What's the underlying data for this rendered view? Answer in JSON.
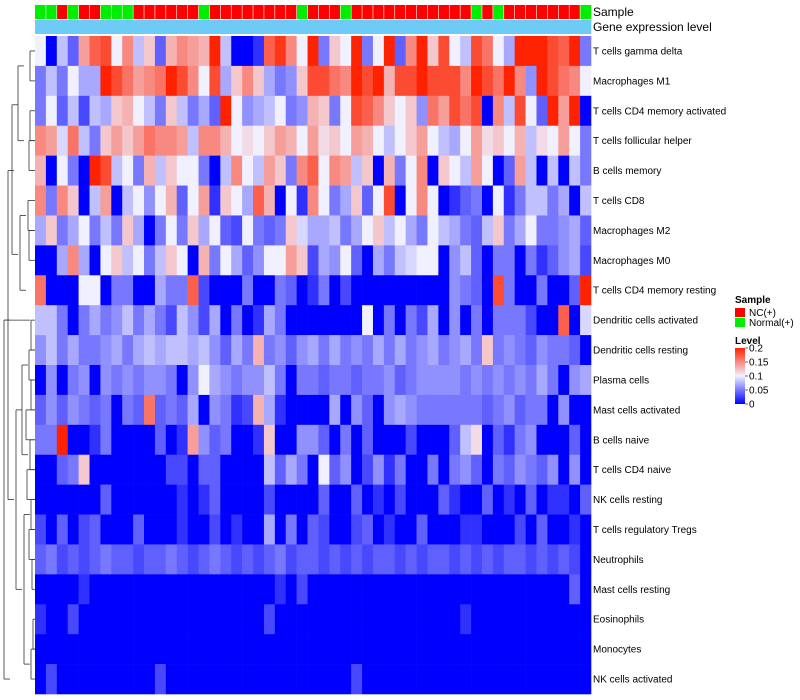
{
  "chart_data": {
    "type": "heatmap",
    "title": "",
    "annotation_rows": [
      {
        "label": "Sample",
        "values": [
          "N",
          "N",
          "NC",
          "N",
          "NC",
          "NC",
          "N",
          "N",
          "N",
          "NC",
          "NC",
          "NC",
          "NC",
          "NC",
          "NC",
          "N",
          "NC",
          "NC",
          "NC",
          "NC",
          "NC",
          "NC",
          "NC",
          "NC",
          "N",
          "NC",
          "NC",
          "NC",
          "N",
          "NC",
          "NC",
          "NC",
          "NC",
          "NC",
          "NC",
          "NC",
          "NC",
          "NC",
          "NC",
          "NC",
          "N",
          "NC",
          "N",
          "NC",
          "NC",
          "NC",
          "NC",
          "NC",
          "NC",
          "NC",
          "N"
        ]
      },
      {
        "label": "Gene expression level",
        "values": [
          "G",
          "G",
          "G",
          "G",
          "G",
          "G",
          "G",
          "G",
          "G",
          "G",
          "G",
          "G",
          "G",
          "G",
          "G",
          "G",
          "G",
          "G",
          "G",
          "G",
          "G",
          "G",
          "G",
          "G",
          "G",
          "G",
          "G",
          "G",
          "G",
          "G",
          "G",
          "G",
          "G",
          "G",
          "G",
          "G",
          "G",
          "G",
          "G",
          "G",
          "G",
          "G",
          "G",
          "G",
          "G",
          "G",
          "G",
          "G",
          "G",
          "G",
          "G"
        ]
      }
    ],
    "row_labels": [
      "T cells gamma delta",
      "Macrophages M1",
      "T cells CD4 memory activated",
      "T cells follicular helper",
      "B cells memory",
      "T cells CD8",
      "Macrophages M2",
      "Macrophages M0",
      "T cells CD4 memory resting",
      "Dendritic cells activated",
      "Dendritic cells resting",
      "Plasma cells",
      "Mast cells activated",
      "B cells naive",
      "T cells CD4 naive",
      "NK cells resting",
      "T cells regulatory  Tregs",
      "Neutrophils",
      "Mast cells resting",
      "Eosinophils",
      "Monocytes",
      "NK cells activated"
    ],
    "values": [
      [
        0.1,
        0.0,
        0.08,
        0.04,
        0.14,
        0.17,
        0.18,
        0.1,
        0.15,
        0.08,
        0.12,
        0.04,
        0.13,
        0.15,
        0.14,
        0.13,
        0.2,
        0.08,
        0.0,
        0.0,
        0.02,
        0.17,
        0.19,
        0.15,
        0.1,
        0.2,
        0.05,
        0.12,
        0.1,
        0.2,
        0.05,
        0.1,
        0.2,
        0.04,
        0.15,
        0.2,
        0.12,
        0.18,
        0.1,
        0.08,
        0.18,
        0.16,
        0.1,
        0.07,
        0.2,
        0.2,
        0.2,
        0.18,
        0.17,
        0.2,
        0.05
      ],
      [
        0.05,
        0.08,
        0.05,
        0.1,
        0.07,
        0.07,
        0.2,
        0.18,
        0.16,
        0.14,
        0.15,
        0.16,
        0.2,
        0.18,
        0.15,
        0.1,
        0.18,
        0.07,
        0.12,
        0.15,
        0.12,
        0.07,
        0.05,
        0.06,
        0.12,
        0.18,
        0.18,
        0.16,
        0.15,
        0.2,
        0.18,
        0.2,
        0.13,
        0.18,
        0.18,
        0.2,
        0.18,
        0.18,
        0.18,
        0.15,
        0.2,
        0.18,
        0.16,
        0.2,
        0.15,
        0.06,
        0.2,
        0.18,
        0.16,
        0.15,
        0.1
      ],
      [
        0.05,
        0.1,
        0.04,
        0.08,
        0.03,
        0.08,
        0.07,
        0.12,
        0.13,
        0.1,
        0.08,
        0.05,
        0.12,
        0.08,
        0.05,
        0.07,
        0.04,
        0.2,
        0.1,
        0.06,
        0.07,
        0.08,
        0.1,
        0.05,
        0.06,
        0.13,
        0.12,
        0.05,
        0.1,
        0.18,
        0.17,
        0.15,
        0.12,
        0.1,
        0.12,
        0.06,
        0.16,
        0.14,
        0.18,
        0.16,
        0.18,
        0.0,
        0.15,
        0.08,
        0.18,
        0.1,
        0.04,
        0.2,
        0.14,
        0.2,
        0.0
      ],
      [
        0.15,
        0.14,
        0.09,
        0.16,
        0.08,
        0.05,
        0.12,
        0.14,
        0.12,
        0.14,
        0.16,
        0.15,
        0.15,
        0.14,
        0.08,
        0.15,
        0.15,
        0.13,
        0.1,
        0.11,
        0.1,
        0.12,
        0.14,
        0.13,
        0.1,
        0.14,
        0.11,
        0.12,
        0.1,
        0.14,
        0.13,
        0.1,
        0.08,
        0.1,
        0.12,
        0.14,
        0.1,
        0.08,
        0.07,
        0.1,
        0.14,
        0.11,
        0.12,
        0.1,
        0.13,
        0.08,
        0.11,
        0.1,
        0.14,
        0.1,
        0.05
      ],
      [
        0.13,
        0.0,
        0.1,
        0.05,
        0.0,
        0.2,
        0.18,
        0.08,
        0.1,
        0.05,
        0.13,
        0.08,
        0.12,
        0.1,
        0.1,
        0.05,
        0.0,
        0.08,
        0.15,
        0.1,
        0.08,
        0.14,
        0.12,
        0.05,
        0.15,
        0.17,
        0.1,
        0.15,
        0.14,
        0.08,
        0.12,
        0.0,
        0.13,
        0.05,
        0.1,
        0.15,
        0.0,
        0.12,
        0.1,
        0.08,
        0.14,
        0.1,
        0.0,
        0.04,
        0.14,
        0.08,
        0.0,
        0.08,
        0.0,
        0.08,
        0.05
      ],
      [
        0.15,
        0.05,
        0.15,
        0.12,
        0.0,
        0.08,
        0.14,
        0.0,
        0.08,
        0.1,
        0.06,
        0.1,
        0.13,
        0.04,
        0.1,
        0.14,
        0.02,
        0.12,
        0.1,
        0.07,
        0.17,
        0.13,
        0.0,
        0.1,
        0.02,
        0.15,
        0.1,
        0.05,
        0.07,
        0.12,
        0.04,
        0.1,
        0.18,
        0.0,
        0.1,
        0.15,
        0.1,
        0.0,
        0.02,
        0.04,
        0.05,
        0.0,
        0.1,
        0.02,
        0.05,
        0.08,
        0.08,
        0.05,
        0.07,
        0.0,
        0.08
      ],
      [
        0.07,
        0.12,
        0.05,
        0.07,
        0.1,
        0.05,
        0.08,
        0.05,
        0.12,
        0.07,
        0.0,
        0.05,
        0.1,
        0.05,
        0.12,
        0.07,
        0.1,
        0.04,
        0.03,
        0.1,
        0.05,
        0.04,
        0.05,
        0.12,
        0.09,
        0.07,
        0.07,
        0.08,
        0.05,
        0.07,
        0.1,
        0.12,
        0.08,
        0.1,
        0.07,
        0.05,
        0.1,
        0.08,
        0.07,
        0.05,
        0.04,
        0.08,
        0.12,
        0.05,
        0.07,
        0.1,
        0.05,
        0.05,
        0.06,
        0.07,
        0.04
      ],
      [
        0.0,
        0.0,
        0.07,
        0.15,
        0.07,
        0.0,
        0.1,
        0.12,
        0.08,
        0.1,
        0.05,
        0.08,
        0.12,
        0.1,
        0.0,
        0.13,
        0.05,
        0.1,
        0.07,
        0.04,
        0.06,
        0.1,
        0.1,
        0.14,
        0.12,
        0.03,
        0.07,
        0.06,
        0.1,
        0.04,
        0.0,
        0.07,
        0.05,
        0.08,
        0.09,
        0.1,
        0.1,
        0.0,
        0.06,
        0.08,
        0.04,
        0.0,
        0.05,
        0.05,
        0.0,
        0.05,
        0.02,
        0.04,
        0.06,
        0.07,
        0.03
      ],
      [
        0.16,
        0.0,
        0.0,
        0.0,
        0.1,
        0.1,
        0.0,
        0.05,
        0.05,
        0.0,
        0.0,
        0.07,
        0.05,
        0.05,
        0.17,
        0.03,
        0.0,
        0.0,
        0.0,
        0.05,
        0.0,
        0.0,
        0.05,
        0.04,
        0.0,
        0.02,
        0.05,
        0.0,
        0.03,
        0.0,
        0.0,
        0.0,
        0.0,
        0.0,
        0.0,
        0.0,
        0.0,
        0.0,
        0.06,
        0.05,
        0.04,
        0.0,
        0.18,
        0.05,
        0.0,
        0.0,
        0.05,
        0.0,
        0.0,
        0.04,
        0.2
      ],
      [
        0.08,
        0.08,
        0.05,
        0.0,
        0.05,
        0.07,
        0.05,
        0.06,
        0.08,
        0.05,
        0.07,
        0.05,
        0.03,
        0.08,
        0.06,
        0.03,
        0.07,
        0.0,
        0.05,
        0.0,
        0.02,
        0.07,
        0.05,
        0.0,
        0.0,
        0.0,
        0.0,
        0.0,
        0.0,
        0.0,
        0.1,
        0.0,
        0.05,
        0.0,
        0.05,
        0.03,
        0.07,
        0.0,
        0.06,
        0.0,
        0.05,
        0.0,
        0.05,
        0.05,
        0.05,
        0.03,
        0.0,
        0.0,
        0.17,
        0.0,
        0.09
      ],
      [
        0.06,
        0.08,
        0.05,
        0.07,
        0.05,
        0.05,
        0.06,
        0.07,
        0.05,
        0.07,
        0.08,
        0.07,
        0.08,
        0.08,
        0.07,
        0.08,
        0.06,
        0.04,
        0.07,
        0.05,
        0.13,
        0.05,
        0.06,
        0.04,
        0.06,
        0.07,
        0.05,
        0.07,
        0.05,
        0.06,
        0.05,
        0.07,
        0.05,
        0.07,
        0.05,
        0.06,
        0.07,
        0.05,
        0.06,
        0.07,
        0.05,
        0.12,
        0.05,
        0.06,
        0.05,
        0.04,
        0.06,
        0.05,
        0.05,
        0.04,
        0.0
      ],
      [
        0.0,
        0.06,
        0.0,
        0.05,
        0.06,
        0.0,
        0.06,
        0.05,
        0.06,
        0.05,
        0.06,
        0.06,
        0.05,
        0.0,
        0.06,
        0.1,
        0.07,
        0.06,
        0.05,
        0.06,
        0.06,
        0.08,
        0.05,
        0.0,
        0.05,
        0.05,
        0.04,
        0.05,
        0.05,
        0.04,
        0.05,
        0.05,
        0.06,
        0.04,
        0.05,
        0.06,
        0.06,
        0.06,
        0.06,
        0.05,
        0.06,
        0.05,
        0.06,
        0.05,
        0.06,
        0.05,
        0.07,
        0.05,
        0.0,
        0.06,
        0.07
      ],
      [
        0.04,
        0.06,
        0.04,
        0.06,
        0.05,
        0.04,
        0.05,
        0.0,
        0.05,
        0.04,
        0.16,
        0.04,
        0.05,
        0.04,
        0.07,
        0.0,
        0.06,
        0.05,
        0.02,
        0.03,
        0.13,
        0.07,
        0.02,
        0.0,
        0.0,
        0.0,
        0.0,
        0.07,
        0.0,
        0.06,
        0.04,
        0.0,
        0.06,
        0.07,
        0.06,
        0.05,
        0.05,
        0.05,
        0.05,
        0.05,
        0.05,
        0.04,
        0.05,
        0.06,
        0.04,
        0.05,
        0.05,
        0.0,
        0.06,
        0.0,
        0.0
      ],
      [
        0.05,
        0.05,
        0.2,
        0.0,
        0.0,
        0.02,
        0.05,
        0.0,
        0.0,
        0.0,
        0.0,
        0.04,
        0.0,
        0.02,
        0.14,
        0.06,
        0.04,
        0.05,
        0.0,
        0.0,
        0.02,
        0.12,
        0.0,
        0.0,
        0.06,
        0.06,
        0.04,
        0.0,
        0.05,
        0.0,
        0.04,
        0.0,
        0.0,
        0.0,
        0.03,
        0.0,
        0.0,
        0.0,
        0.04,
        0.08,
        0.11,
        0.0,
        0.04,
        0.02,
        0.05,
        0.06,
        0.0,
        0.0,
        0.0,
        0.04,
        0.0
      ],
      [
        0.0,
        0.0,
        0.04,
        0.05,
        0.12,
        0.0,
        0.0,
        0.0,
        0.0,
        0.0,
        0.0,
        0.0,
        0.03,
        0.03,
        0.0,
        0.04,
        0.04,
        0.0,
        0.0,
        0.0,
        0.0,
        0.08,
        0.04,
        0.07,
        0.05,
        0.0,
        0.1,
        0.04,
        0.06,
        0.0,
        0.03,
        0.06,
        0.02,
        0.05,
        0.0,
        0.0,
        0.05,
        0.0,
        0.05,
        0.06,
        0.04,
        0.0,
        0.05,
        0.04,
        0.06,
        0.05,
        0.04,
        0.06,
        0.0,
        0.06,
        0.0
      ],
      [
        0.0,
        0.0,
        0.0,
        0.0,
        0.0,
        0.0,
        0.04,
        0.0,
        0.0,
        0.0,
        0.0,
        0.0,
        0.0,
        0.02,
        0.0,
        0.02,
        0.04,
        0.0,
        0.0,
        0.0,
        0.0,
        0.03,
        0.0,
        0.0,
        0.0,
        0.0,
        0.04,
        0.0,
        0.0,
        0.04,
        0.0,
        0.02,
        0.0,
        0.03,
        0.0,
        0.0,
        0.0,
        0.04,
        0.02,
        0.0,
        0.0,
        0.04,
        0.0,
        0.02,
        0.0,
        0.04,
        0.0,
        0.02,
        0.02,
        0.0,
        0.04
      ],
      [
        0.03,
        0.0,
        0.04,
        0.0,
        0.03,
        0.04,
        0.0,
        0.0,
        0.0,
        0.04,
        0.0,
        0.0,
        0.0,
        0.02,
        0.0,
        0.0,
        0.03,
        0.0,
        0.02,
        0.0,
        0.0,
        0.07,
        0.0,
        0.05,
        0.0,
        0.04,
        0.03,
        0.0,
        0.0,
        0.03,
        0.04,
        0.0,
        0.02,
        0.0,
        0.0,
        0.04,
        0.0,
        0.0,
        0.0,
        0.02,
        0.02,
        0.0,
        0.0,
        0.0,
        0.03,
        0.0,
        0.04,
        0.0,
        0.0,
        0.02,
        0.0
      ],
      [
        0.04,
        0.05,
        0.03,
        0.04,
        0.03,
        0.04,
        0.05,
        0.04,
        0.04,
        0.03,
        0.04,
        0.04,
        0.05,
        0.04,
        0.03,
        0.04,
        0.05,
        0.04,
        0.03,
        0.04,
        0.03,
        0.04,
        0.05,
        0.03,
        0.04,
        0.04,
        0.03,
        0.04,
        0.03,
        0.04,
        0.03,
        0.04,
        0.04,
        0.03,
        0.04,
        0.03,
        0.04,
        0.04,
        0.03,
        0.04,
        0.03,
        0.04,
        0.03,
        0.04,
        0.04,
        0.03,
        0.04,
        0.03,
        0.04,
        0.03,
        0.0
      ],
      [
        0.0,
        0.0,
        0.0,
        0.0,
        0.02,
        0.0,
        0.0,
        0.0,
        0.0,
        0.0,
        0.0,
        0.0,
        0.0,
        0.0,
        0.0,
        0.0,
        0.0,
        0.0,
        0.0,
        0.0,
        0.0,
        0.0,
        0.02,
        0.0,
        0.03,
        0.0,
        0.0,
        0.0,
        0.0,
        0.0,
        0.0,
        0.0,
        0.0,
        0.0,
        0.0,
        0.0,
        0.0,
        0.0,
        0.0,
        0.0,
        0.0,
        0.0,
        0.0,
        0.0,
        0.0,
        0.0,
        0.0,
        0.0,
        0.0,
        0.04,
        0.0
      ],
      [
        0.02,
        0.0,
        0.0,
        0.03,
        0.0,
        0.0,
        0.0,
        0.0,
        0.0,
        0.0,
        0.0,
        0.0,
        0.0,
        0.0,
        0.0,
        0.0,
        0.0,
        0.0,
        0.0,
        0.0,
        0.0,
        0.03,
        0.0,
        0.0,
        0.0,
        0.0,
        0.0,
        0.0,
        0.0,
        0.0,
        0.0,
        0.0,
        0.0,
        0.0,
        0.0,
        0.0,
        0.0,
        0.0,
        0.0,
        0.02,
        0.0,
        0.0,
        0.0,
        0.0,
        0.0,
        0.0,
        0.0,
        0.0,
        0.0,
        0.0,
        0.0
      ],
      [
        0.0,
        0.0,
        0.0,
        0.0,
        0.0,
        0.0,
        0.0,
        0.0,
        0.0,
        0.0,
        0.0,
        0.0,
        0.0,
        0.0,
        0.0,
        0.0,
        0.0,
        0.0,
        0.0,
        0.0,
        0.0,
        0.0,
        0.0,
        0.0,
        0.0,
        0.0,
        0.0,
        0.0,
        0.0,
        0.0,
        0.0,
        0.0,
        0.0,
        0.0,
        0.0,
        0.0,
        0.0,
        0.0,
        0.0,
        0.0,
        0.0,
        0.0,
        0.0,
        0.0,
        0.0,
        0.0,
        0.0,
        0.0,
        0.0,
        0.0,
        0.0
      ],
      [
        0.0,
        0.03,
        0.0,
        0.0,
        0.0,
        0.0,
        0.0,
        0.0,
        0.0,
        0.0,
        0.0,
        0.03,
        0.0,
        0.0,
        0.0,
        0.0,
        0.0,
        0.0,
        0.0,
        0.0,
        0.0,
        0.0,
        0.0,
        0.0,
        0.0,
        0.0,
        0.0,
        0.0,
        0.0,
        0.03,
        0.0,
        0.0,
        0.0,
        0.0,
        0.0,
        0.0,
        0.0,
        0.0,
        0.0,
        0.0,
        0.0,
        0.0,
        0.0,
        0.0,
        0.0,
        0.0,
        0.0,
        0.0,
        0.0,
        0.0,
        0.0
      ]
    ],
    "legend": {
      "sample": {
        "title": "Sample",
        "items": [
          {
            "key": "NC",
            "label": "NC(+)",
            "color": "#ff0000"
          },
          {
            "key": "N",
            "label": "Normal(+)",
            "color": "#00ee00"
          }
        ]
      },
      "level": {
        "title": "Level",
        "min": 0,
        "max": 0.2,
        "ticks": [
          {
            "value": 0.2,
            "label": "0.2"
          },
          {
            "value": 0.15,
            "label": "0.15"
          },
          {
            "value": 0.1,
            "label": "0.1"
          },
          {
            "value": 0.05,
            "label": "0.05"
          },
          {
            "value": 0,
            "label": "0"
          }
        ],
        "colors": [
          "#0000ff",
          "#f0f0ff",
          "#ff2200"
        ],
        "placement": "right"
      }
    },
    "annotation_colors": {
      "G": "#6ecbf5"
    }
  }
}
